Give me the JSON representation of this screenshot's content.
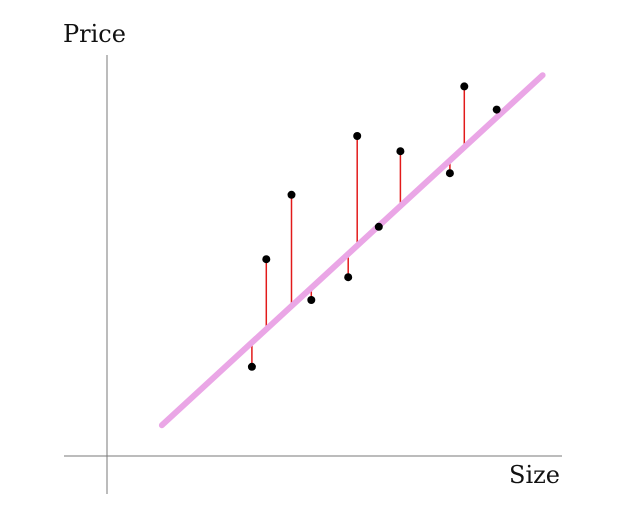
{
  "chart_data": {
    "type": "scatter",
    "title": "",
    "xlabel": "Size",
    "ylabel": "Price",
    "grid": false,
    "legend": "none",
    "xlim": [
      0,
      100
    ],
    "ylim": [
      0,
      100
    ],
    "points": [
      {
        "x": 32.2,
        "y": 22.3
      },
      {
        "x": 35.4,
        "y": 49.2
      },
      {
        "x": 41.0,
        "y": 65.3
      },
      {
        "x": 45.4,
        "y": 39.0
      },
      {
        "x": 53.6,
        "y": 44.7
      },
      {
        "x": 55.6,
        "y": 80.0
      },
      {
        "x": 60.4,
        "y": 57.3
      },
      {
        "x": 65.2,
        "y": 76.2
      },
      {
        "x": 76.2,
        "y": 70.7
      },
      {
        "x": 79.4,
        "y": 92.4
      },
      {
        "x": 86.6,
        "y": 86.6
      }
    ],
    "fit_line": {
      "x": [
        12.2,
        96.8
      ],
      "y": [
        7.7,
        95.2
      ]
    },
    "colors": {
      "points": "#000000",
      "fit_line": "#eaa6e6",
      "residuals": "#e21a1a",
      "axes": "#7a7a7a"
    }
  }
}
